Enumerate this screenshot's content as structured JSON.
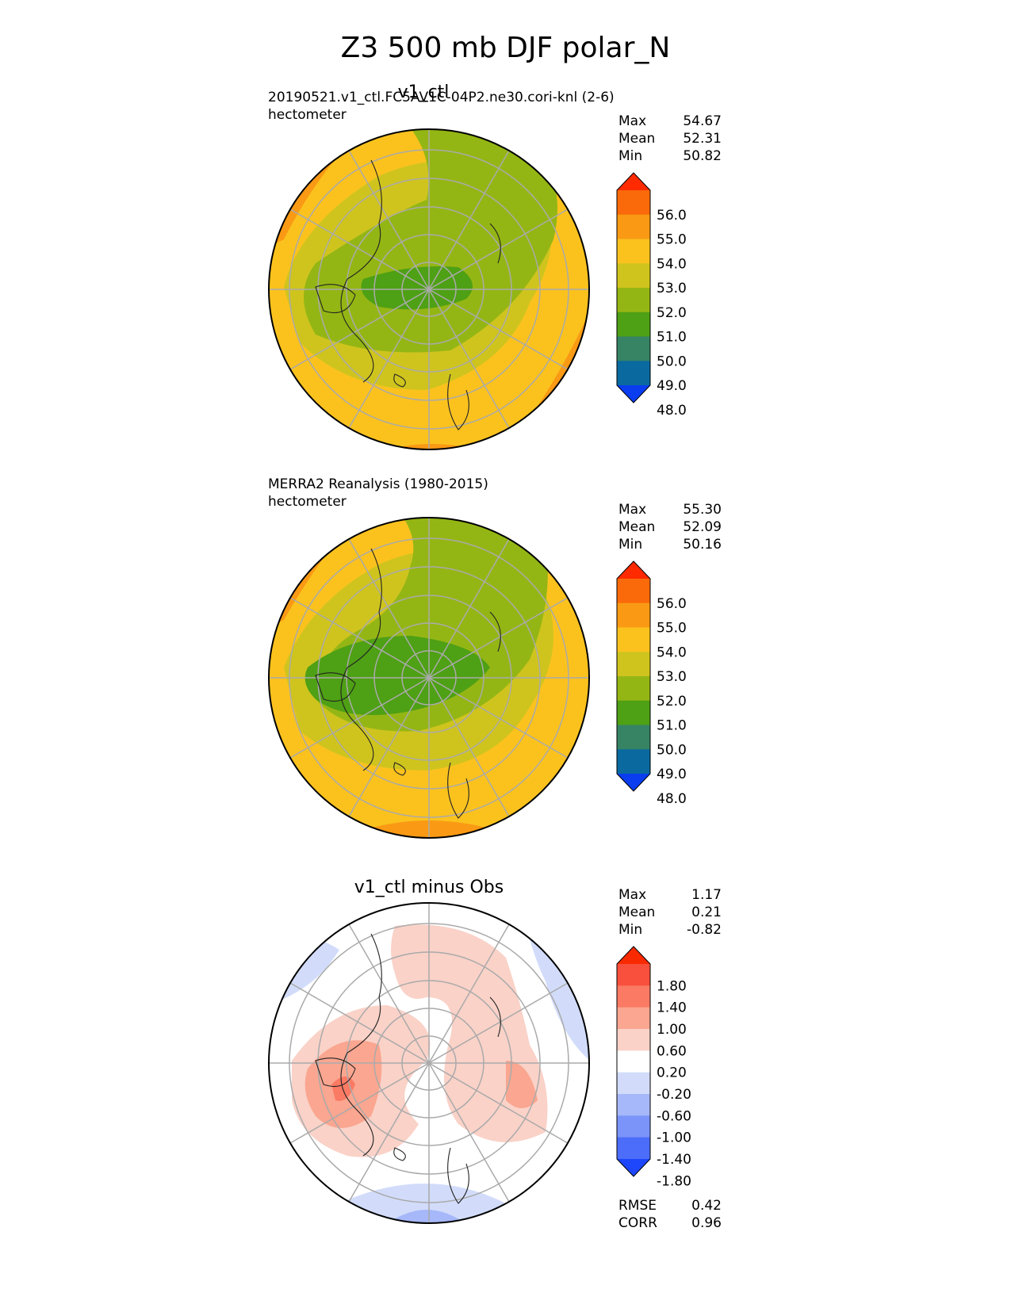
{
  "title": "Z3 500 mb DJF polar_N",
  "panels": [
    {
      "title": "v1_ctl",
      "subtitle": "20190521.v1_ctl.FC5AV1C-04P2.ne30.cori-knl (2-6)",
      "units": "hectometer",
      "stats": [
        {
          "label": "Max",
          "value": "54.67"
        },
        {
          "label": "Mean",
          "value": "52.31"
        },
        {
          "label": "Min",
          "value": "50.82"
        }
      ],
      "colorbar": {
        "ticks": [
          "56.0",
          "55.0",
          "54.0",
          "53.0",
          "52.0",
          "51.0",
          "50.0",
          "49.0",
          "48.0"
        ],
        "colors": [
          "#ff2a00",
          "#fa6a0a",
          "#fa9a14",
          "#fbc21e",
          "#cfc41e",
          "#94b614",
          "#4ea014",
          "#368464",
          "#0a6aa0",
          "#0a3cf0"
        ]
      }
    },
    {
      "title": "",
      "subtitle": "MERRA2 Reanalysis (1980-2015)",
      "units": "hectometer",
      "stats": [
        {
          "label": "Max",
          "value": "55.30"
        },
        {
          "label": "Mean",
          "value": "52.09"
        },
        {
          "label": "Min",
          "value": "50.16"
        }
      ],
      "colorbar": {
        "ticks": [
          "56.0",
          "55.0",
          "54.0",
          "53.0",
          "52.0",
          "51.0",
          "50.0",
          "49.0",
          "48.0"
        ],
        "colors": [
          "#ff2a00",
          "#fa6a0a",
          "#fa9a14",
          "#fbc21e",
          "#cfc41e",
          "#94b614",
          "#4ea014",
          "#368464",
          "#0a6aa0",
          "#0a3cf0"
        ]
      }
    },
    {
      "title": "v1_ctl minus Obs",
      "subtitle": "",
      "units": "",
      "stats": [
        {
          "label": "Max",
          "value": "1.17"
        },
        {
          "label": "Mean",
          "value": "0.21"
        },
        {
          "label": "Min",
          "value": "-0.82"
        }
      ],
      "colorbar": {
        "ticks": [
          "1.80",
          "1.40",
          "1.00",
          "0.60",
          "0.20",
          "-0.20",
          "-0.60",
          "-1.00",
          "-1.40",
          "-1.80"
        ],
        "colors": [
          "#fa2a00",
          "#f8503c",
          "#fa7a64",
          "#faa690",
          "#fad2c8",
          "#ffffff",
          "#d2dcfa",
          "#a6b8fa",
          "#7a94fa",
          "#4c6cfa",
          "#1e46fa"
        ]
      },
      "rmse": {
        "label": "RMSE",
        "value": "0.42"
      },
      "corr": {
        "label": "CORR",
        "value": "0.96"
      }
    }
  ],
  "chart_data": [
    {
      "type": "heatmap",
      "title": "v1_ctl",
      "projection": "north polar stereographic",
      "variable": "Z3 500 mb DJF",
      "units": "hectometer",
      "stats": {
        "max": 54.67,
        "mean": 52.31,
        "min": 50.82
      },
      "color_levels": [
        48,
        49,
        50,
        51,
        52,
        53,
        54,
        55,
        56
      ],
      "grid": true
    },
    {
      "type": "heatmap",
      "title": "MERRA2 Reanalysis (1980-2015)",
      "projection": "north polar stereographic",
      "variable": "Z3 500 mb DJF",
      "units": "hectometer",
      "stats": {
        "max": 55.3,
        "mean": 52.09,
        "min": 50.16
      },
      "color_levels": [
        48,
        49,
        50,
        51,
        52,
        53,
        54,
        55,
        56
      ],
      "grid": true
    },
    {
      "type": "heatmap",
      "title": "v1_ctl minus Obs",
      "projection": "north polar stereographic",
      "stats": {
        "max": 1.17,
        "mean": 0.21,
        "min": -0.82,
        "rmse": 0.42,
        "corr": 0.96
      },
      "color_levels": [
        -1.8,
        -1.4,
        -1.0,
        -0.6,
        -0.2,
        0.2,
        0.6,
        1.0,
        1.4,
        1.8
      ],
      "grid": true
    }
  ]
}
